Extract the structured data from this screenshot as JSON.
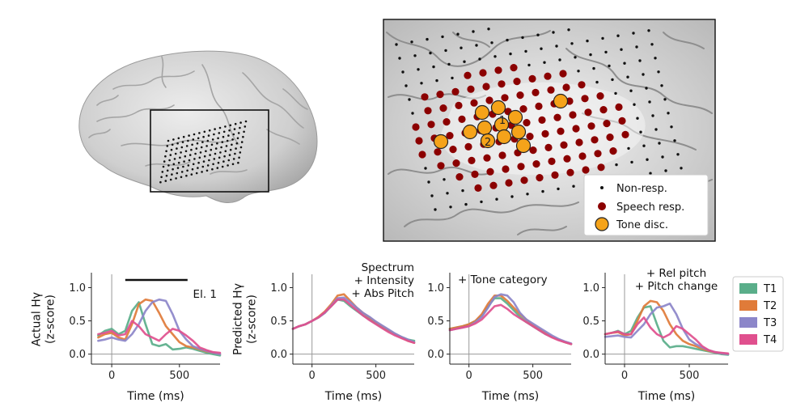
{
  "colors": {
    "T1": "#5aae8a",
    "T2": "#e07b39",
    "T3": "#8c86c9",
    "T4": "#e0508e",
    "nonresp": "#111111",
    "speech": "#8b0000",
    "tone": "#f5a31a",
    "brain": "#c8c8c8"
  },
  "brain_legend": {
    "items": [
      {
        "label": "Non-resp.",
        "marker": "small-dot"
      },
      {
        "label": "Speech resp.",
        "marker": "dark-red-dot"
      },
      {
        "label": "Tone disc.",
        "marker": "orange-circle"
      }
    ],
    "electrode_labels": [
      "1",
      "2"
    ]
  },
  "chart_data": [
    {
      "type": "line",
      "panel": "actual",
      "ylabel": "Actual Hγ\n(z-score)",
      "ylabel_lines": [
        "Actual Hγ",
        "(z-score)"
      ],
      "xlabel": "Time (ms)",
      "xlim": [
        -150,
        800
      ],
      "ylim": [
        -0.15,
        1.2
      ],
      "xticks": [
        0,
        500
      ],
      "xtick_labels": [
        "0",
        "500"
      ],
      "yticks": [
        0.0,
        0.5,
        1.0
      ],
      "ytick_labels": [
        "0.0",
        "0.5",
        "1.0"
      ],
      "annotation": "El. 1",
      "significance_bar": [
        100,
        560
      ],
      "series": [
        {
          "name": "T1",
          "x": [
            -100,
            -50,
            0,
            50,
            100,
            150,
            200,
            250,
            300,
            350,
            400,
            450,
            500,
            550,
            600,
            650,
            700,
            750,
            800
          ],
          "y": [
            0.28,
            0.35,
            0.38,
            0.3,
            0.35,
            0.65,
            0.78,
            0.45,
            0.15,
            0.12,
            0.15,
            0.07,
            0.08,
            0.1,
            0.08,
            0.05,
            0.02,
            0.0,
            -0.02
          ]
        },
        {
          "name": "T2",
          "x": [
            -100,
            -50,
            0,
            50,
            100,
            150,
            200,
            250,
            300,
            350,
            400,
            450,
            500,
            550,
            600,
            650,
            700,
            750,
            800
          ],
          "y": [
            0.25,
            0.3,
            0.32,
            0.25,
            0.22,
            0.45,
            0.75,
            0.82,
            0.8,
            0.62,
            0.42,
            0.3,
            0.18,
            0.12,
            0.1,
            0.07,
            0.04,
            0.02,
            0.0
          ]
        },
        {
          "name": "T3",
          "x": [
            -100,
            -50,
            0,
            50,
            100,
            150,
            200,
            250,
            300,
            350,
            400,
            450,
            500,
            550,
            600,
            650,
            700,
            750,
            800
          ],
          "y": [
            0.2,
            0.22,
            0.25,
            0.22,
            0.2,
            0.3,
            0.45,
            0.65,
            0.78,
            0.82,
            0.8,
            0.6,
            0.35,
            0.22,
            0.12,
            0.08,
            0.05,
            0.02,
            0.0
          ]
        },
        {
          "name": "T4",
          "x": [
            -100,
            -50,
            0,
            50,
            100,
            150,
            200,
            250,
            300,
            350,
            400,
            450,
            500,
            550,
            600,
            650,
            700,
            750,
            800
          ],
          "y": [
            0.3,
            0.32,
            0.35,
            0.28,
            0.3,
            0.5,
            0.42,
            0.3,
            0.25,
            0.2,
            0.3,
            0.38,
            0.35,
            0.28,
            0.2,
            0.1,
            0.06,
            0.03,
            0.02
          ]
        }
      ]
    },
    {
      "type": "line",
      "panel": "spectrum",
      "ylabel": "Predicted Hγ\n(z-score)",
      "ylabel_lines": [
        "Predicted Hγ",
        "(z-score)"
      ],
      "xlabel": "Time (ms)",
      "xlim": [
        -150,
        800
      ],
      "ylim": [
        -0.15,
        1.2
      ],
      "xticks": [
        0,
        500
      ],
      "xtick_labels": [
        "0",
        "500"
      ],
      "yticks": [
        0.0,
        0.5,
        1.0
      ],
      "ytick_labels": [
        "0.0",
        "0.5",
        "1.0"
      ],
      "annotation_lines": [
        "Spectrum",
        "+ Intensity",
        "+ Abs Pitch"
      ],
      "series": [
        {
          "name": "T1",
          "x": [
            -150,
            -100,
            -50,
            0,
            50,
            100,
            150,
            200,
            250,
            300,
            350,
            400,
            450,
            500,
            550,
            600,
            650,
            700,
            750,
            800
          ],
          "y": [
            0.38,
            0.42,
            0.45,
            0.5,
            0.55,
            0.62,
            0.72,
            0.82,
            0.8,
            0.72,
            0.65,
            0.58,
            0.52,
            0.46,
            0.4,
            0.35,
            0.3,
            0.26,
            0.22,
            0.2
          ]
        },
        {
          "name": "T2",
          "x": [
            -150,
            -100,
            -50,
            0,
            50,
            100,
            150,
            200,
            250,
            300,
            350,
            400,
            450,
            500,
            550,
            600,
            650,
            700,
            750,
            800
          ],
          "y": [
            0.38,
            0.42,
            0.45,
            0.5,
            0.56,
            0.64,
            0.75,
            0.88,
            0.9,
            0.8,
            0.7,
            0.62,
            0.55,
            0.48,
            0.42,
            0.36,
            0.3,
            0.25,
            0.2,
            0.17
          ]
        },
        {
          "name": "T3",
          "x": [
            -150,
            -100,
            -50,
            0,
            50,
            100,
            150,
            200,
            250,
            300,
            350,
            400,
            450,
            500,
            550,
            600,
            650,
            700,
            750,
            800
          ],
          "y": [
            0.38,
            0.42,
            0.45,
            0.5,
            0.55,
            0.62,
            0.73,
            0.84,
            0.85,
            0.78,
            0.7,
            0.62,
            0.56,
            0.49,
            0.43,
            0.37,
            0.31,
            0.26,
            0.22,
            0.18
          ]
        },
        {
          "name": "T4",
          "x": [
            -150,
            -100,
            -50,
            0,
            50,
            100,
            150,
            200,
            250,
            300,
            350,
            400,
            450,
            500,
            550,
            600,
            650,
            700,
            750,
            800
          ],
          "y": [
            0.38,
            0.42,
            0.45,
            0.5,
            0.55,
            0.63,
            0.72,
            0.82,
            0.82,
            0.74,
            0.66,
            0.58,
            0.51,
            0.45,
            0.39,
            0.33,
            0.28,
            0.24,
            0.2,
            0.17
          ]
        }
      ]
    },
    {
      "type": "line",
      "panel": "tone-category",
      "xlabel": "Time (ms)",
      "xlim": [
        -150,
        800
      ],
      "ylim": [
        -0.15,
        1.2
      ],
      "xticks": [
        0,
        500
      ],
      "xtick_labels": [
        "0",
        "500"
      ],
      "yticks": [
        0.0,
        0.5,
        1.0
      ],
      "ytick_labels": [
        "0.0",
        "0.5",
        "1.0"
      ],
      "annotation_lines": [
        "+ Tone category"
      ],
      "series": [
        {
          "name": "T1",
          "x": [
            -150,
            -100,
            -50,
            0,
            50,
            100,
            150,
            200,
            250,
            300,
            350,
            400,
            450,
            500,
            550,
            600,
            650,
            700,
            750,
            800
          ],
          "y": [
            0.38,
            0.4,
            0.42,
            0.45,
            0.5,
            0.58,
            0.72,
            0.84,
            0.84,
            0.76,
            0.66,
            0.56,
            0.48,
            0.42,
            0.36,
            0.3,
            0.26,
            0.22,
            0.18,
            0.15
          ]
        },
        {
          "name": "T2",
          "x": [
            -150,
            -100,
            -50,
            0,
            50,
            100,
            150,
            200,
            250,
            300,
            350,
            400,
            450,
            500,
            550,
            600,
            650,
            700,
            750,
            800
          ],
          "y": [
            0.38,
            0.4,
            0.42,
            0.45,
            0.5,
            0.6,
            0.76,
            0.88,
            0.88,
            0.8,
            0.7,
            0.6,
            0.52,
            0.44,
            0.38,
            0.32,
            0.26,
            0.22,
            0.18,
            0.15
          ]
        },
        {
          "name": "T3",
          "x": [
            -150,
            -100,
            -50,
            0,
            50,
            100,
            150,
            200,
            250,
            300,
            350,
            400,
            450,
            500,
            550,
            600,
            650,
            700,
            750,
            800
          ],
          "y": [
            0.36,
            0.38,
            0.4,
            0.42,
            0.48,
            0.56,
            0.7,
            0.86,
            0.9,
            0.88,
            0.78,
            0.62,
            0.52,
            0.46,
            0.4,
            0.34,
            0.28,
            0.23,
            0.19,
            0.16
          ]
        },
        {
          "name": "T4",
          "x": [
            -150,
            -100,
            -50,
            0,
            50,
            100,
            150,
            200,
            250,
            300,
            350,
            400,
            450,
            500,
            550,
            600,
            650,
            700,
            750,
            800
          ],
          "y": [
            0.36,
            0.38,
            0.4,
            0.42,
            0.46,
            0.52,
            0.62,
            0.72,
            0.74,
            0.68,
            0.6,
            0.54,
            0.48,
            0.42,
            0.36,
            0.3,
            0.25,
            0.21,
            0.18,
            0.15
          ]
        }
      ]
    },
    {
      "type": "line",
      "panel": "rel-pitch",
      "xlabel": "Time (ms)",
      "xlim": [
        -150,
        800
      ],
      "ylim": [
        -0.15,
        1.2
      ],
      "xticks": [
        0,
        500
      ],
      "xtick_labels": [
        "0",
        "500"
      ],
      "yticks": [
        0.0,
        0.5,
        1.0
      ],
      "ytick_labels": [
        "0.0",
        "0.5",
        "1.0"
      ],
      "annotation_lines": [
        "+ Rel pitch",
        "+ Pitch change"
      ],
      "series": [
        {
          "name": "T1",
          "x": [
            -150,
            -100,
            -50,
            0,
            50,
            100,
            150,
            200,
            250,
            300,
            350,
            400,
            450,
            500,
            550,
            600,
            650,
            700,
            750,
            800
          ],
          "y": [
            0.3,
            0.32,
            0.35,
            0.3,
            0.35,
            0.55,
            0.7,
            0.72,
            0.45,
            0.2,
            0.1,
            0.12,
            0.12,
            0.1,
            0.08,
            0.06,
            0.04,
            0.02,
            0.0,
            -0.01
          ]
        },
        {
          "name": "T2",
          "x": [
            -150,
            -100,
            -50,
            0,
            50,
            100,
            150,
            200,
            250,
            300,
            350,
            400,
            450,
            500,
            550,
            600,
            650,
            700,
            750,
            800
          ],
          "y": [
            0.3,
            0.32,
            0.33,
            0.28,
            0.3,
            0.5,
            0.72,
            0.8,
            0.78,
            0.65,
            0.45,
            0.3,
            0.2,
            0.15,
            0.12,
            0.08,
            0.05,
            0.03,
            0.01,
            0.0
          ]
        },
        {
          "name": "T3",
          "x": [
            -150,
            -100,
            -50,
            0,
            50,
            100,
            150,
            200,
            250,
            300,
            350,
            400,
            450,
            500,
            550,
            600,
            650,
            700,
            750,
            800
          ],
          "y": [
            0.26,
            0.27,
            0.28,
            0.26,
            0.25,
            0.35,
            0.45,
            0.6,
            0.7,
            0.72,
            0.76,
            0.6,
            0.38,
            0.22,
            0.15,
            0.1,
            0.06,
            0.03,
            0.01,
            0.0
          ]
        },
        {
          "name": "T4",
          "x": [
            -150,
            -100,
            -50,
            0,
            50,
            100,
            150,
            200,
            250,
            300,
            350,
            400,
            450,
            500,
            550,
            600,
            650,
            700,
            750,
            800
          ],
          "y": [
            0.3,
            0.32,
            0.34,
            0.3,
            0.3,
            0.45,
            0.55,
            0.4,
            0.3,
            0.25,
            0.3,
            0.42,
            0.38,
            0.3,
            0.22,
            0.12,
            0.06,
            0.03,
            0.02,
            0.01
          ]
        }
      ]
    }
  ],
  "tone_legend": [
    "T1",
    "T2",
    "T3",
    "T4"
  ]
}
